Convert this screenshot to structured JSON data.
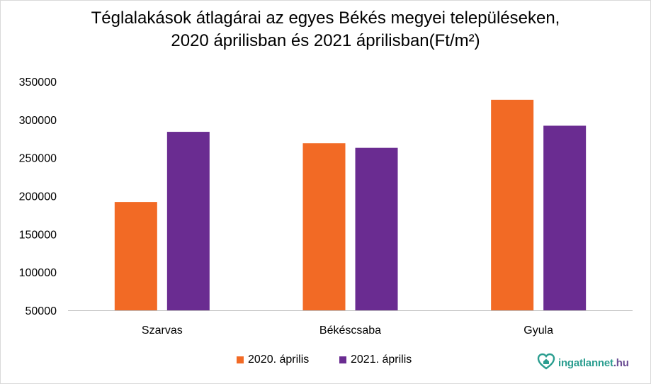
{
  "title_lines": [
    "Téglalakások átlagárai az egyes Békés megyei településeken,",
    "2020 áprilisban és 2021 áprilisban(Ft/m²)"
  ],
  "chart_data": {
    "type": "bar",
    "title": "Téglalakások átlagárai az egyes Békés megyei településeken, 2020 áprilisban és 2021 áprilisban(Ft/m²)",
    "categories": [
      "Szarvas",
      "Békéscsaba",
      "Gyula"
    ],
    "series": [
      {
        "name": "2020. április",
        "values": [
          192000,
          269000,
          326000
        ],
        "color": "#f26a25"
      },
      {
        "name": "2021. április",
        "values": [
          284000,
          263000,
          292000
        ],
        "color": "#6a2c91"
      }
    ],
    "ylim": [
      50000,
      350000
    ],
    "yticks": [
      "50000",
      "100000",
      "150000",
      "200000",
      "250000",
      "300000",
      "350000"
    ],
    "grid": false,
    "legend_position": "bottom"
  },
  "legend": {
    "items": [
      {
        "label": "2020. április",
        "color": "#f26a25"
      },
      {
        "label": "2021. április",
        "color": "#6a2c91"
      }
    ]
  },
  "logo": {
    "icon": "house-heart-icon",
    "name": "ingatlannet",
    "tld": ".hu",
    "brand_color": "#2a9d8f",
    "tld_color": "#6a4c93"
  }
}
